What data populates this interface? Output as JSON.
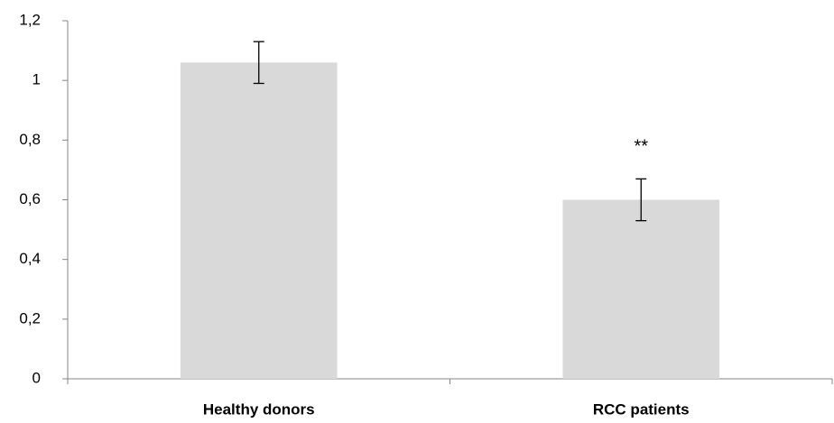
{
  "chart_data": {
    "type": "bar",
    "categories": [
      "Healthy donors",
      "RCC patients"
    ],
    "values": [
      1.06,
      0.6
    ],
    "error": [
      0.07,
      0.07
    ],
    "annotations": [
      "",
      "**"
    ],
    "ylim": [
      0,
      1.2
    ],
    "yticks": [
      0,
      0.2,
      0.4,
      0.6,
      0.8,
      1,
      1.2
    ],
    "ytick_labels": [
      "0",
      "0,2",
      "0,4",
      "0,6",
      "0,8",
      "1",
      "1,2"
    ],
    "grid": false,
    "legend": "none",
    "colors": {
      "bar": "#d9d9d9",
      "axis": "#868686",
      "error": "#000000"
    }
  }
}
